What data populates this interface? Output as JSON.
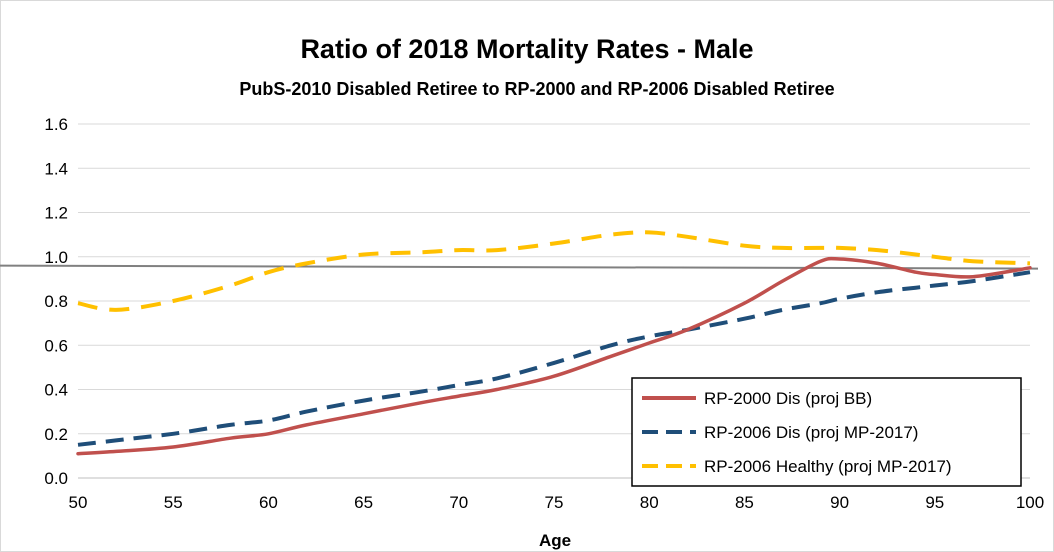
{
  "chart_data": {
    "type": "line",
    "title": "Ratio of 2018 Mortality Rates - Male",
    "subtitle": "PubS-2010 Disabled Retiree to RP-2000 and RP-2006 Disabled Retiree",
    "xlabel": "Age",
    "ylabel": "",
    "xlim": [
      50,
      100
    ],
    "ylim": [
      0,
      1.6
    ],
    "xticks": [
      "50",
      "55",
      "60",
      "65",
      "70",
      "75",
      "80",
      "85",
      "90",
      "95",
      "100"
    ],
    "yticks": [
      "0.0",
      "0.2",
      "0.4",
      "0.6",
      "0.8",
      "1.0",
      "1.2",
      "1.4",
      "1.6"
    ],
    "grid": "horizontal",
    "legend_position": "bottom-right",
    "reference_line": 0.96,
    "x": [
      50,
      52,
      55,
      58,
      60,
      62,
      65,
      68,
      70,
      72,
      75,
      78,
      80,
      82,
      85,
      87,
      89,
      90,
      92,
      94,
      95,
      97,
      100
    ],
    "series": [
      {
        "name": "RP-2000 Dis (proj BB)",
        "color": "#c0504d",
        "style": "solid",
        "values": [
          0.11,
          0.12,
          0.14,
          0.18,
          0.2,
          0.24,
          0.29,
          0.34,
          0.37,
          0.4,
          0.46,
          0.55,
          0.61,
          0.67,
          0.79,
          0.89,
          0.98,
          0.99,
          0.97,
          0.93,
          0.92,
          0.91,
          0.95
        ]
      },
      {
        "name": "RP-2006 Dis (proj MP-2017)",
        "color": "#1f4e79",
        "style": "dashed",
        "values": [
          0.15,
          0.17,
          0.2,
          0.24,
          0.26,
          0.3,
          0.35,
          0.39,
          0.42,
          0.45,
          0.52,
          0.6,
          0.64,
          0.67,
          0.72,
          0.76,
          0.79,
          0.81,
          0.84,
          0.86,
          0.87,
          0.89,
          0.93
        ]
      },
      {
        "name": "RP-2006 Healthy (proj MP-2017)",
        "color": "#ffc000",
        "style": "dashed",
        "values": [
          0.79,
          0.76,
          0.8,
          0.87,
          0.93,
          0.97,
          1.01,
          1.02,
          1.03,
          1.03,
          1.06,
          1.1,
          1.11,
          1.09,
          1.05,
          1.04,
          1.04,
          1.04,
          1.03,
          1.01,
          1.0,
          0.98,
          0.97
        ]
      }
    ]
  }
}
